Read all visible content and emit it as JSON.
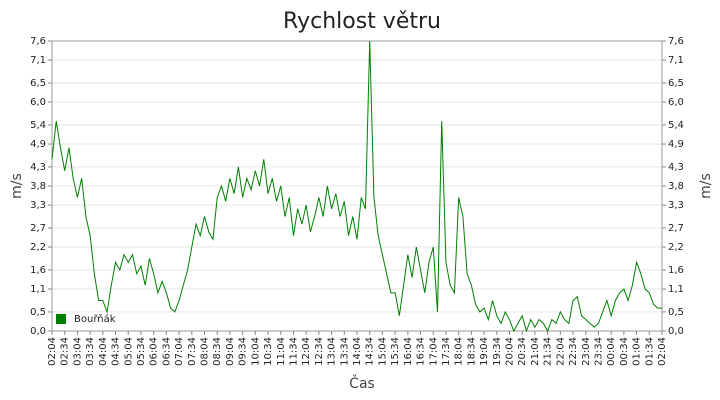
{
  "chart_data": {
    "type": "line",
    "title": "Rychlost větru",
    "x_label": "Čas",
    "y_label": "m/s",
    "legend": "lower left",
    "grid": true,
    "categories": [
      "02:04",
      null,
      null,
      "02:34",
      null,
      null,
      "03:04",
      null,
      null,
      "03:34",
      null,
      null,
      "04:04",
      null,
      null,
      "04:34",
      null,
      null,
      "05:04",
      null,
      null,
      "05:34",
      null,
      null,
      "06:04",
      null,
      null,
      "06:34",
      null,
      null,
      "07:04",
      null,
      null,
      "07:34",
      null,
      null,
      "08:04",
      null,
      null,
      "08:34",
      null,
      null,
      "09:04",
      null,
      null,
      "09:34",
      null,
      null,
      "10:04",
      null,
      null,
      "10:34",
      null,
      null,
      "11:04",
      null,
      null,
      "11:34",
      null,
      null,
      "12:04",
      null,
      null,
      "12:34",
      null,
      null,
      "13:04",
      null,
      null,
      "13:34",
      null,
      null,
      "14:04",
      null,
      null,
      "14:34",
      null,
      null,
      "15:04",
      null,
      null,
      "15:34",
      null,
      null,
      "16:04",
      null,
      null,
      "16:34",
      null,
      null,
      "17:04",
      null,
      null,
      "17:34",
      null,
      null,
      "18:04",
      null,
      null,
      "18:34",
      null,
      null,
      "19:04",
      null,
      null,
      "19:34",
      null,
      null,
      "20:04",
      null,
      null,
      "20:34",
      null,
      null,
      "21:04",
      null,
      null,
      "21:34",
      null,
      null,
      "22:04",
      null,
      null,
      "22:34",
      null,
      null,
      "23:04",
      null,
      null,
      "23:34",
      null,
      null,
      "00:04",
      null,
      null,
      "00:34",
      null,
      null,
      "01:04",
      null,
      null,
      "01:34",
      null,
      null,
      "02:04"
    ],
    "series": [
      {
        "name": "Bouřňák",
        "color": "#008000",
        "values": [
          4.5,
          5.5,
          4.8,
          4.2,
          4.8,
          4.0,
          3.5,
          4.0,
          3.0,
          2.5,
          1.5,
          0.8,
          0.8,
          0.5,
          1.2,
          1.8,
          1.6,
          2.0,
          1.8,
          2.0,
          1.5,
          1.7,
          1.2,
          1.9,
          1.5,
          1.0,
          1.3,
          1.0,
          0.6,
          0.5,
          0.8,
          1.2,
          1.6,
          2.2,
          2.8,
          2.5,
          3.0,
          2.6,
          2.4,
          3.5,
          3.8,
          3.4,
          4.0,
          3.6,
          4.3,
          3.5,
          4.0,
          3.7,
          4.2,
          3.8,
          4.5,
          3.6,
          4.0,
          3.4,
          3.8,
          3.0,
          3.5,
          2.5,
          3.2,
          2.8,
          3.3,
          2.6,
          3.0,
          3.5,
          3.0,
          3.8,
          3.2,
          3.6,
          3.0,
          3.4,
          2.5,
          3.0,
          2.4,
          3.5,
          3.2,
          7.6,
          3.5,
          2.5,
          2.0,
          1.5,
          1.0,
          1.0,
          0.4,
          1.2,
          2.0,
          1.4,
          2.2,
          1.6,
          1.0,
          1.8,
          2.2,
          0.5,
          5.5,
          1.8,
          1.2,
          1.0,
          3.5,
          3.0,
          1.5,
          1.2,
          0.7,
          0.5,
          0.6,
          0.3,
          0.8,
          0.4,
          0.2,
          0.5,
          0.3,
          0.0,
          0.2,
          0.4,
          0.0,
          0.3,
          0.1,
          0.3,
          0.2,
          0.0,
          0.3,
          0.2,
          0.5,
          0.3,
          0.2,
          0.8,
          0.9,
          0.4,
          0.3,
          0.2,
          0.1,
          0.2,
          0.5,
          0.8,
          0.4,
          0.8,
          1.0,
          1.1,
          0.8,
          1.2,
          1.8,
          1.5,
          1.1,
          1.0,
          0.7,
          0.6,
          0.6
        ]
      }
    ],
    "ylim": [
      0,
      7.6
    ],
    "yticks": [
      {
        "value": 0,
        "label": "0,0"
      },
      {
        "value": 0.5,
        "label": "0,5"
      },
      {
        "value": 1.1,
        "label": "1,1"
      },
      {
        "value": 1.6,
        "label": "1,6"
      },
      {
        "value": 2.2,
        "label": "2,2"
      },
      {
        "value": 2.7,
        "label": "2,7"
      },
      {
        "value": 3.3,
        "label": "3,3"
      },
      {
        "value": 3.8,
        "label": "3,8"
      },
      {
        "value": 4.3,
        "label": "4,3"
      },
      {
        "value": 4.9,
        "label": "4,9"
      },
      {
        "value": 5.4,
        "label": "5,4"
      },
      {
        "value": 6.0,
        "label": "6,0"
      },
      {
        "value": 6.5,
        "label": "6,5"
      },
      {
        "value": 7.1,
        "label": "7,1"
      },
      {
        "value": 7.6,
        "label": "7,6"
      }
    ]
  }
}
